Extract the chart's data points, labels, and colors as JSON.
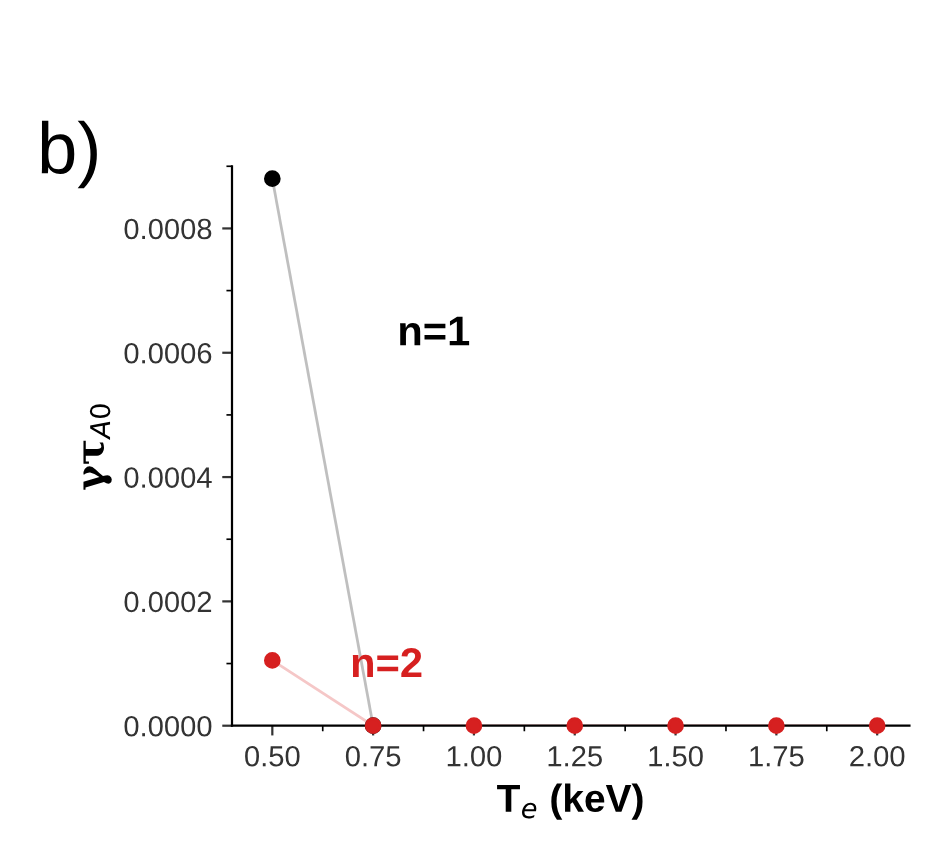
{
  "chart_data": {
    "type": "line",
    "xlabel": "T$_{e}$ (keV)",
    "ylabel": "γτ$_{A0}$",
    "annotations": [
      "b)"
    ],
    "series": [
      {
        "name": "n=1",
        "color": "#000000",
        "x": [
          0.5,
          0.75
        ],
        "values": [
          0.00088,
          0
        ]
      },
      {
        "name": "n=2",
        "color": "#d62020",
        "x": [
          0.5,
          0.75,
          1.0,
          1.25,
          1.5,
          1.75,
          2.0
        ],
        "values": [
          0.000105,
          0,
          0,
          0,
          0,
          0,
          0
        ]
      }
    ],
    "xlim": [
      0.4,
      2.08
    ],
    "ylim": [
      0,
      0.0009
    ],
    "xticks": [
      {
        "value": 0.5,
        "label": "0.50"
      },
      {
        "value": 0.75,
        "label": "0.75"
      },
      {
        "value": 1.0,
        "label": "1.00"
      },
      {
        "value": 1.25,
        "label": "1.25"
      },
      {
        "value": 1.5,
        "label": "1.50"
      },
      {
        "value": 1.75,
        "label": "1.75"
      },
      {
        "value": 2.0,
        "label": "2.00"
      }
    ],
    "yticks": [
      {
        "value": 0,
        "label": "0.0000"
      },
      {
        "value": 0.0002,
        "label": "0.0002"
      },
      {
        "value": 0.0004,
        "label": "0.0004"
      },
      {
        "value": 0.0006,
        "label": "0.0006"
      },
      {
        "value": 0.0008,
        "label": "0.0008"
      }
    ],
    "marker": "circle",
    "line_style": "solid",
    "grid": false,
    "legend": false
  }
}
